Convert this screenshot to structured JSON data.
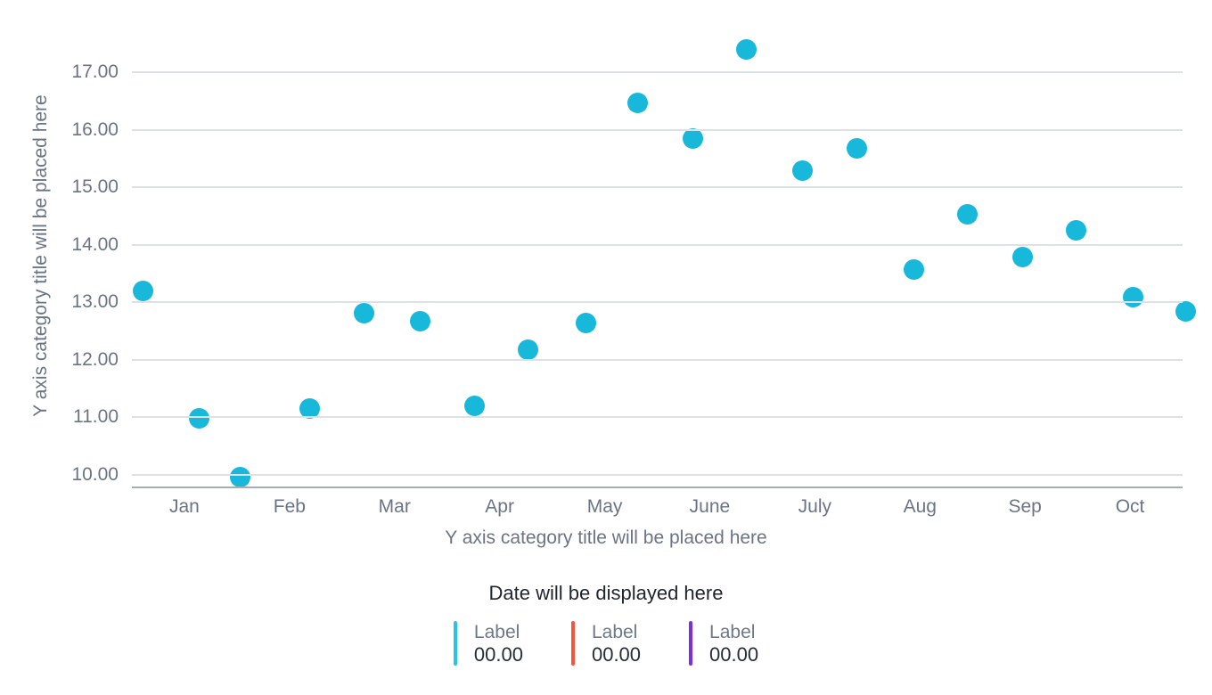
{
  "chart_data": {
    "type": "scatter",
    "title": "",
    "grid": true,
    "legend_position": "bottom",
    "x_axis": {
      "title": "Y axis category title will be placed here",
      "tick_labels": [
        "Jan",
        "Feb",
        "Mar",
        "Apr",
        "May",
        "June",
        "July",
        "Aug",
        "Sep",
        "Oct"
      ]
    },
    "y_axis": {
      "title": "Y axis category title will be placed here",
      "min": 10,
      "max": 17,
      "tick_step": 1,
      "tick_labels": [
        "17.00",
        "16.00",
        "15.00",
        "14.00",
        "13.00",
        "12.00",
        "11.00",
        "10.00"
      ]
    },
    "series": [
      {
        "name": "Label",
        "marker": "circle",
        "color": "#17b8da",
        "points": [
          {
            "x": 0.11,
            "y": 13.2
          },
          {
            "x": 0.64,
            "y": 10.98
          },
          {
            "x": 1.03,
            "y": 9.96
          },
          {
            "x": 1.69,
            "y": 11.15
          },
          {
            "x": 2.21,
            "y": 12.81
          },
          {
            "x": 2.74,
            "y": 12.66
          },
          {
            "x": 3.26,
            "y": 11.2
          },
          {
            "x": 3.77,
            "y": 12.17
          },
          {
            "x": 4.32,
            "y": 12.63
          },
          {
            "x": 4.81,
            "y": 16.47
          },
          {
            "x": 5.34,
            "y": 15.85
          },
          {
            "x": 5.85,
            "y": 17.4
          },
          {
            "x": 6.38,
            "y": 15.28
          },
          {
            "x": 6.9,
            "y": 15.67
          },
          {
            "x": 7.44,
            "y": 13.57
          },
          {
            "x": 7.95,
            "y": 14.53
          },
          {
            "x": 8.48,
            "y": 13.79
          },
          {
            "x": 8.99,
            "y": 14.25
          },
          {
            "x": 9.53,
            "y": 13.08
          },
          {
            "x": 10.03,
            "y": 12.83
          }
        ]
      }
    ],
    "footer": {
      "date_label": "Date will be displayed here"
    },
    "legend": [
      {
        "label": "Label",
        "value": "00.00",
        "color": "#29c3e7"
      },
      {
        "label": "Label",
        "value": "00.00",
        "color": "#f4553c"
      },
      {
        "label": "Label",
        "value": "00.00",
        "color": "#7b2fe3"
      }
    ]
  },
  "colors": {
    "background": "#ffffff",
    "gridline": "#dde0e4",
    "axis_line": "#a6adb6",
    "tick_text": "#6b7486",
    "axis_title_text": "#6b7486",
    "date_text": "#20252f",
    "legend_label_text": "#6e7889",
    "legend_value_text": "#272c3a",
    "point": "#17b8da"
  }
}
